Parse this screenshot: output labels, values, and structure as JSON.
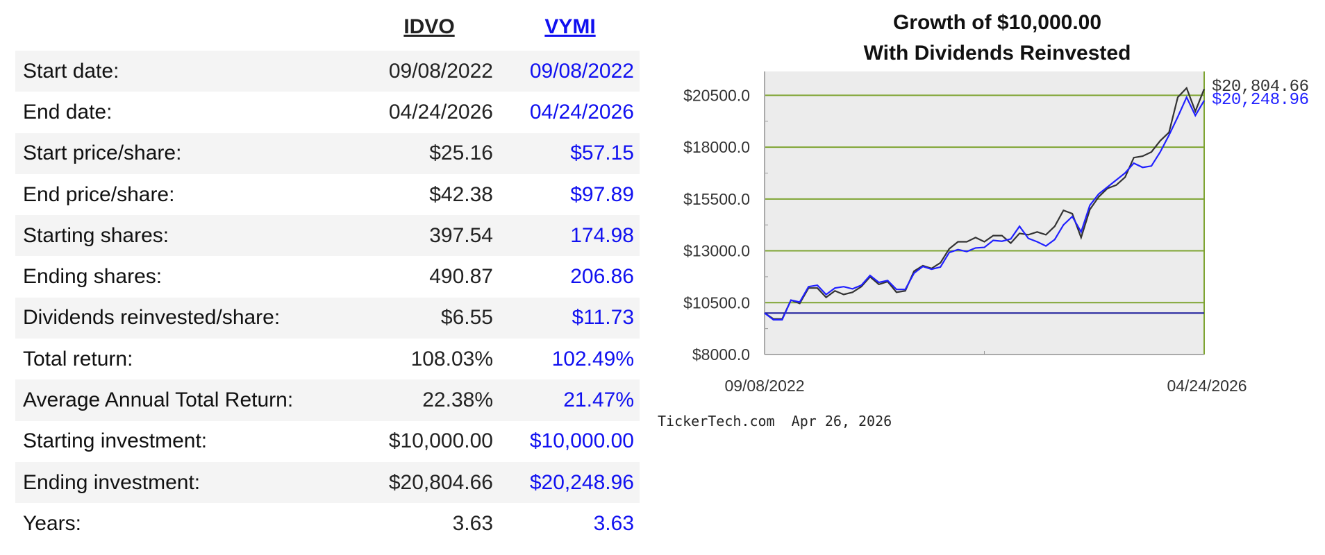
{
  "table": {
    "headers": [
      "IDVO",
      "VYMI"
    ],
    "rows": [
      {
        "label": "Start date:",
        "idvo": "09/08/2022",
        "vymi": "09/08/2022"
      },
      {
        "label": "End date:",
        "idvo": "04/24/2026",
        "vymi": "04/24/2026"
      },
      {
        "label": "Start price/share:",
        "idvo": "$25.16",
        "vymi": "$57.15"
      },
      {
        "label": "End price/share:",
        "idvo": "$42.38",
        "vymi": "$97.89"
      },
      {
        "label": "Starting shares:",
        "idvo": "397.54",
        "vymi": "174.98"
      },
      {
        "label": "Ending shares:",
        "idvo": "490.87",
        "vymi": "206.86"
      },
      {
        "label": "Dividends reinvested/share:",
        "idvo": "$6.55",
        "vymi": "$11.73"
      },
      {
        "label": "Total return:",
        "idvo": "108.03%",
        "vymi": "102.49%"
      },
      {
        "label": "Average Annual Total Return:",
        "idvo": "22.38%",
        "vymi": "21.47%"
      },
      {
        "label": "Starting investment:",
        "idvo": "$10,000.00",
        "vymi": "$10,000.00"
      },
      {
        "label": "Ending investment:",
        "idvo": "$20,804.66",
        "vymi": "$20,248.96"
      },
      {
        "label": "Years:",
        "idvo": "3.63",
        "vymi": "3.63"
      }
    ]
  },
  "chart_data": {
    "type": "line",
    "title": [
      "Growth of $10,000.00",
      "With Dividends Reinvested"
    ],
    "ylim": [
      8000,
      21650
    ],
    "yticks": [
      8000,
      10500,
      13000,
      15500,
      18000,
      20500
    ],
    "ytick_labels": [
      "$8000.0",
      "$10500.0",
      "$13000.0",
      "$15500.0",
      "$18000.0",
      "$20500.0"
    ],
    "xtick_labels": [
      "09/08/2022",
      "04/24/2026"
    ],
    "baseline": 10000,
    "grid": true,
    "series": [
      {
        "name": "IDVO",
        "color": "#333333",
        "end_label": "$20,804.66",
        "values": [
          10000,
          9717,
          9717,
          10623,
          10461,
          11205,
          11205,
          10758,
          11070,
          10894,
          11002,
          11273,
          11746,
          11381,
          11516,
          11002,
          11070,
          12017,
          12287,
          12152,
          12423,
          13099,
          13437,
          13437,
          13640,
          13437,
          13735,
          13735,
          13370,
          13843,
          13776,
          13911,
          13776,
          14182,
          14953,
          14790,
          13640,
          14993,
          15602,
          16008,
          16170,
          16549,
          17496,
          17564,
          17767,
          18308,
          18714,
          20405,
          20852,
          19729,
          20804.66
        ]
      },
      {
        "name": "VYMI",
        "color": "#2020ff",
        "end_label": "$20,248.96",
        "values": [
          10000,
          9676,
          9676,
          10623,
          10528,
          11273,
          11340,
          10894,
          11205,
          11273,
          11164,
          11340,
          11814,
          11475,
          11570,
          11137,
          11137,
          11922,
          12247,
          12111,
          12220,
          12923,
          13058,
          12964,
          13140,
          13167,
          13505,
          13464,
          13573,
          14182,
          13600,
          13437,
          13234,
          13546,
          14249,
          14655,
          13911,
          15196,
          15737,
          16076,
          16414,
          16752,
          17226,
          17023,
          17090,
          17767,
          18579,
          19458,
          20405,
          19526,
          20248.96
        ]
      }
    ],
    "colors": {
      "grid": "#7ea432",
      "baseline": "#1a1a9a",
      "plot_bg": "#ececec"
    }
  },
  "footer": "TickerTech.com  Apr 26, 2026"
}
